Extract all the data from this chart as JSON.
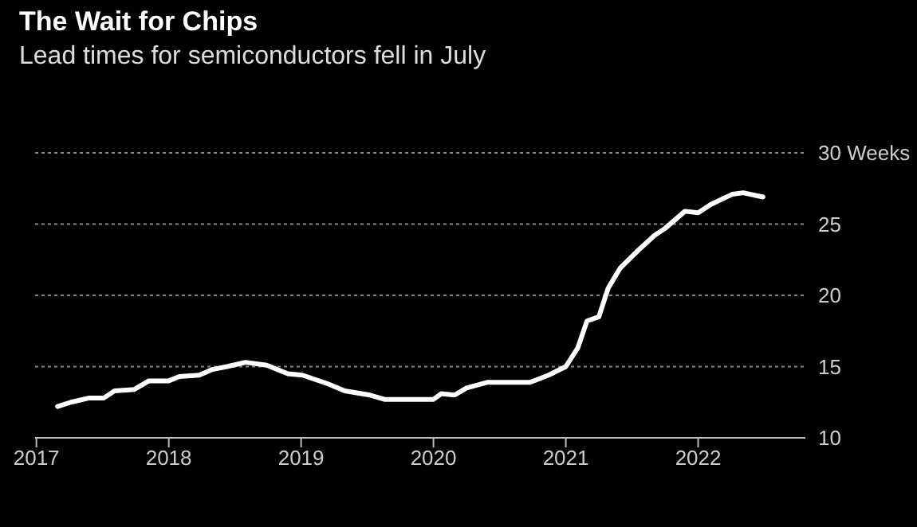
{
  "chart_data": {
    "type": "line",
    "title": "The Wait for Chips",
    "subtitle": "Lead times for semiconductors fell in July",
    "x": [
      2017.16,
      2017.26,
      2017.4,
      2017.51,
      2017.59,
      2017.74,
      2017.85,
      2018.0,
      2018.08,
      2018.23,
      2018.33,
      2018.44,
      2018.58,
      2018.74,
      2018.9,
      2019.01,
      2019.2,
      2019.33,
      2019.52,
      2019.63,
      2020.0,
      2020.06,
      2020.16,
      2020.25,
      2020.41,
      2020.73,
      2020.87,
      2021.0,
      2021.09,
      2021.16,
      2021.25,
      2021.32,
      2021.41,
      2021.54,
      2021.67,
      2021.75,
      2021.9,
      2022.0,
      2022.1,
      2022.26,
      2022.34,
      2022.49
    ],
    "series": [
      {
        "color": "#ffffff",
        "values": [
          12.2,
          12.5,
          12.8,
          12.8,
          13.3,
          13.4,
          14.0,
          14.0,
          14.3,
          14.4,
          14.8,
          15.0,
          15.3,
          15.1,
          14.5,
          14.4,
          13.8,
          13.3,
          13.0,
          12.7,
          12.7,
          13.1,
          13.0,
          13.5,
          13.9,
          13.9,
          14.4,
          15.0,
          16.3,
          18.2,
          18.5,
          20.5,
          21.9,
          23.1,
          24.2,
          24.7,
          25.9,
          25.8,
          26.4,
          27.1,
          27.2,
          26.9
        ]
      }
    ],
    "xlim": [
      2016.99,
      2022.81
    ],
    "xticks": [
      2017,
      2018,
      2019,
      2020,
      2021,
      2022
    ],
    "ylim": [
      10,
      30
    ],
    "yticks": [
      10,
      15,
      20,
      25,
      {
        "value": 30,
        "label": "30 Weeks"
      }
    ],
    "grid": "y",
    "marker": "none",
    "line_style": "solid"
  }
}
